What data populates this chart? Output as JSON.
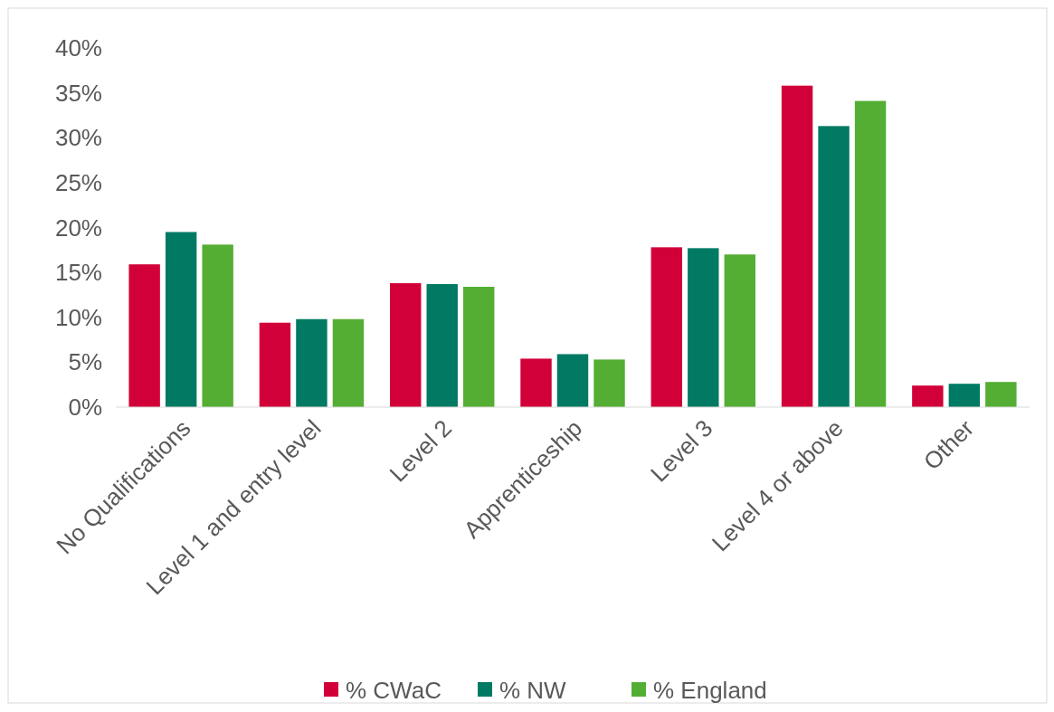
{
  "chart_data": {
    "type": "bar",
    "categories": [
      "No Qualifications",
      "Level 1 and entry level",
      "Level 2",
      "Apprenticeship",
      "Level 3",
      "Level 4 or above",
      "Other"
    ],
    "series": [
      {
        "name": "% CWaC",
        "color": "#d20038",
        "values": [
          15.9,
          9.4,
          13.8,
          5.4,
          17.8,
          35.8,
          2.4
        ]
      },
      {
        "name": "% NW",
        "color": "#007a63",
        "values": [
          19.5,
          9.8,
          13.7,
          5.9,
          17.7,
          31.3,
          2.6
        ]
      },
      {
        "name": "% England",
        "color": "#54ae33",
        "values": [
          18.1,
          9.8,
          13.4,
          5.3,
          17.0,
          34.1,
          2.8
        ]
      }
    ],
    "ylim": [
      0,
      40
    ],
    "yticks": [
      {
        "value": 0,
        "label": "0%"
      },
      {
        "value": 5,
        "label": "5%"
      },
      {
        "value": 10,
        "label": "10%"
      },
      {
        "value": 15,
        "label": "15%"
      },
      {
        "value": 20,
        "label": "20%"
      },
      {
        "value": 25,
        "label": "25%"
      },
      {
        "value": 30,
        "label": "30%"
      },
      {
        "value": 35,
        "label": "35%"
      },
      {
        "value": 40,
        "label": "40%"
      }
    ],
    "grid": false,
    "legend": "bottom"
  }
}
